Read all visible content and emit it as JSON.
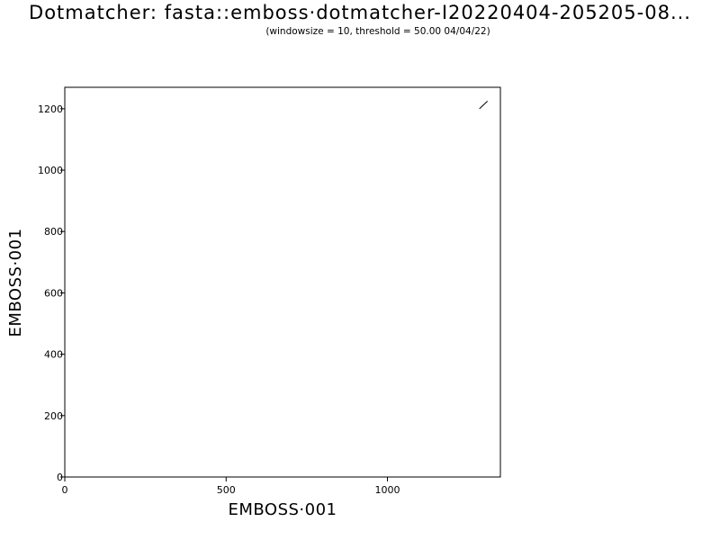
{
  "chart_data": {
    "type": "scatter",
    "title": "Dotmatcher: fasta::emboss·dotmatcher-I20220404-205205-08...",
    "subtitle": "(windowsize = 10, threshold = 50.00  04/04/22)",
    "xlabel": "EMBOSS·001",
    "ylabel": "EMBOSS·001",
    "xlim": [
      0,
      1350
    ],
    "ylim": [
      0,
      1270
    ],
    "xticks": [
      0,
      500,
      1000
    ],
    "yticks": [
      0,
      200,
      400,
      600,
      800,
      1000,
      1200
    ],
    "grid": false,
    "segments": [
      {
        "x": [
          1285,
          1310
        ],
        "y": [
          1200,
          1225
        ]
      }
    ]
  }
}
